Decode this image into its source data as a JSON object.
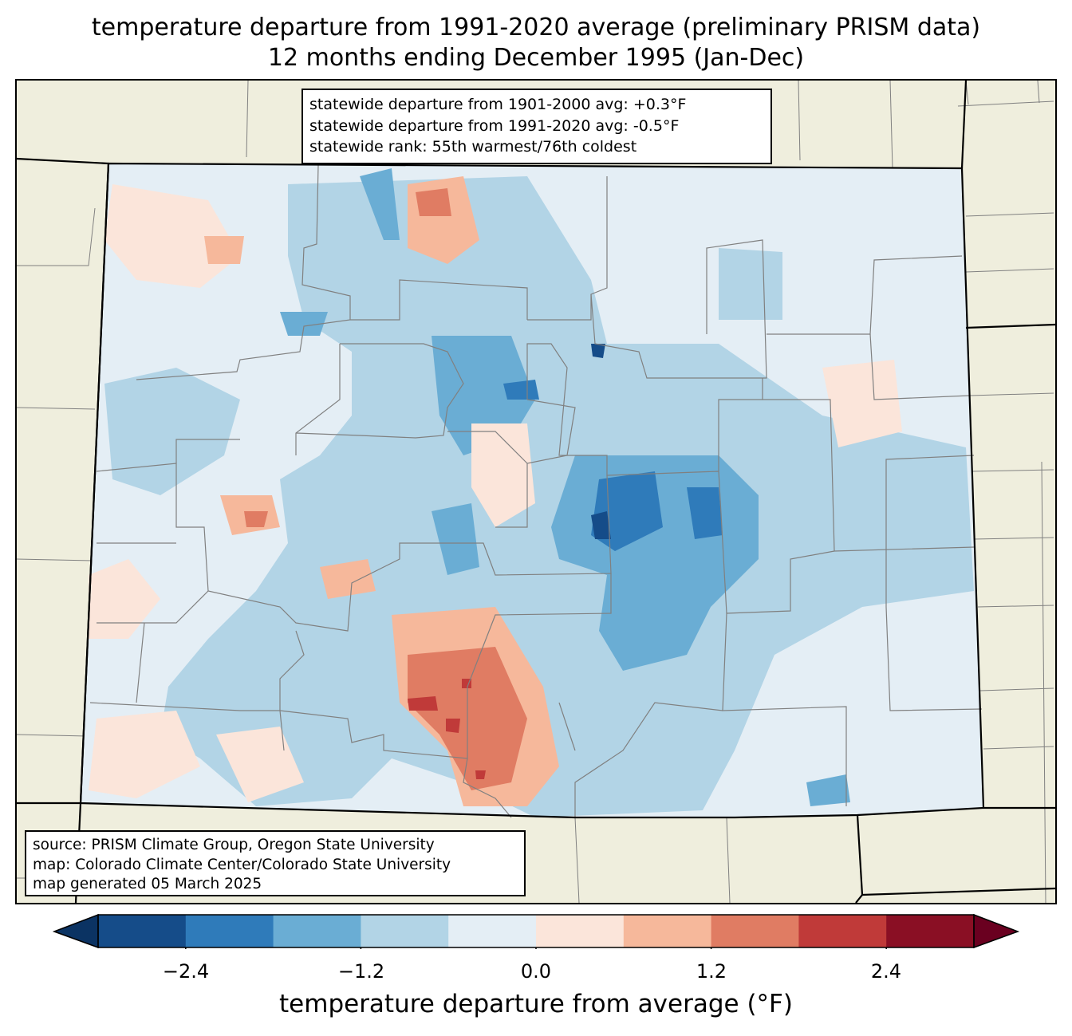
{
  "title": {
    "line1": "temperature departure from 1991-2020 average (preliminary PRISM data)",
    "line2": "12 months ending December 1995 (Jan-Dec)"
  },
  "stats_box": {
    "line1": "statewide departure from 1901-2000 avg: +0.3°F",
    "line2": "statewide departure from 1991-2020 avg: -0.5°F",
    "line3": "statewide rank: 55th warmest/76th coldest"
  },
  "source_box": {
    "line1": "source: PRISM Climate Group, Oregon State University",
    "line2": "map: Colorado Climate Center/Colorado State University",
    "line3": "map generated 05 March 2025"
  },
  "colorbar": {
    "label": "temperature departure from average (°F)",
    "ticks": [
      "−2.4",
      "−1.2",
      "0.0",
      "1.2",
      "2.4"
    ],
    "bounds": [
      -3.0,
      -2.4,
      -1.8,
      -1.2,
      -0.6,
      0.0,
      0.6,
      1.2,
      1.8,
      2.4,
      3.0
    ],
    "colors": [
      "#154c89",
      "#2f7bba",
      "#6aadd4",
      "#b2d4e6",
      "#e4eef5",
      "#fbe5da",
      "#f6b89b",
      "#e07c63",
      "#c03a39",
      "#8a0f24"
    ],
    "under_color": "#0b3363",
    "over_color": "#6a0020"
  },
  "map_colors": {
    "background": "#efeedd",
    "state_fill": "#e4eef5"
  }
}
